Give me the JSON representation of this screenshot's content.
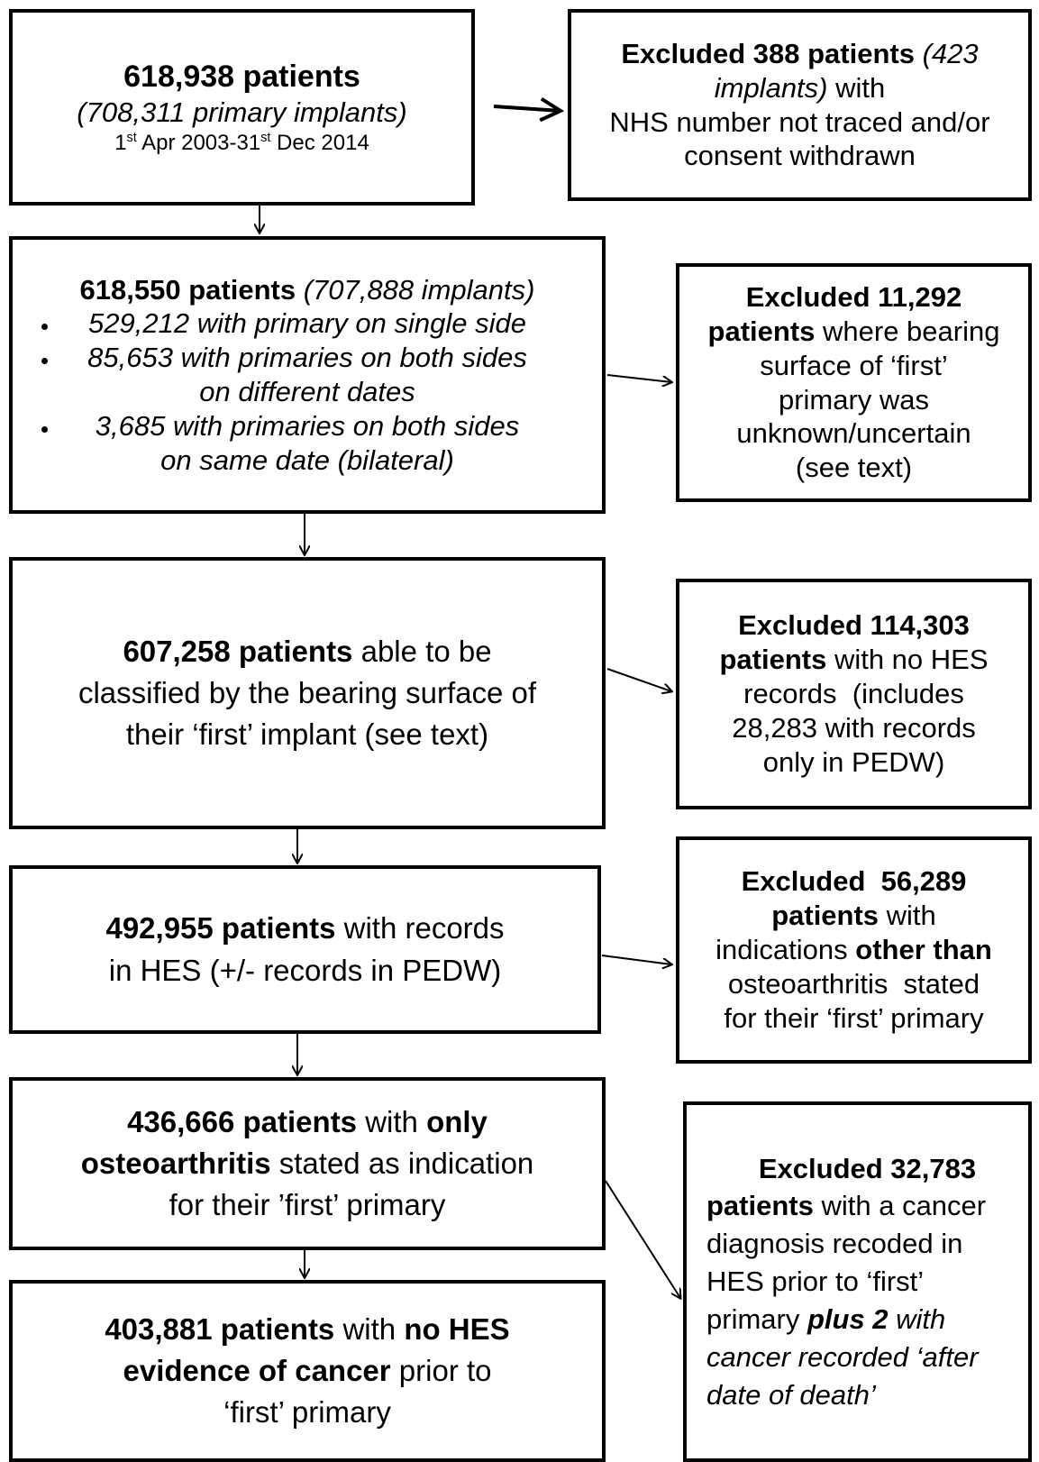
{
  "boxes": [
    {
      "lines": [
        [
          "618,938 patients"
        ],
        [
          "(708,311 primary implants)"
        ],
        [
          "1",
          "st",
          " Apr 2003-31",
          "st",
          " Dec 2014"
        ]
      ]
    },
    {
      "lines": [
        [
          "Excluded 388 patients",
          " (423"
        ],
        [
          "implants)",
          " with"
        ],
        [
          "NHS number not traced and/or"
        ],
        [
          "consent withdrawn"
        ]
      ]
    },
    {
      "lines": [
        [
          "618,550 patients",
          " (707,888 implants)"
        ],
        [
          "529,212 with primary on single side"
        ],
        [
          "85,653 with primaries on both sides"
        ],
        [
          "on different dates"
        ],
        [
          "3,685 with primaries on both sides"
        ],
        [
          "on same date (bilateral)"
        ]
      ]
    },
    {
      "lines": [
        [
          "Excluded 11,292"
        ],
        [
          "patients",
          " where bearing"
        ],
        [
          "surface of ‘first’"
        ],
        [
          "primary was"
        ],
        [
          "unknown/uncertain"
        ],
        [
          "(see text)"
        ]
      ]
    },
    {
      "lines": [
        [
          "607,258 patients",
          " able to be"
        ],
        [
          "classified by the bearing surface of"
        ],
        [
          "their ‘first’ implant (see text)"
        ]
      ]
    },
    {
      "lines": [
        [
          "Excluded 114,303"
        ],
        [
          "patients",
          " with no HES"
        ],
        [
          "records  (includes"
        ],
        [
          "28,283 with records"
        ],
        [
          "only in PEDW)"
        ]
      ]
    },
    {
      "lines": [
        [
          "492,955 patients",
          " with records"
        ],
        [
          "in HES (+/- records in PEDW)"
        ]
      ]
    },
    {
      "lines": [
        [
          "Excluded  56,289"
        ],
        [
          "patients",
          " with"
        ],
        [
          "indications ",
          "other than"
        ],
        [
          "osteoarthritis  stated"
        ],
        [
          "for their ‘first’ primary"
        ]
      ]
    },
    {
      "lines": [
        [
          "436,666 patients",
          " with ",
          "only"
        ],
        [
          "osteoarthritis",
          " stated as indication"
        ],
        [
          "for their ’first’ primary"
        ]
      ]
    },
    {
      "lines": [
        [
          "Excluded 32,783"
        ],
        [
          "patients",
          " with a cancer"
        ],
        [
          "diagnosis recoded in"
        ],
        [
          "HES prior to ‘first’"
        ],
        [
          "primary ",
          "plus 2",
          " with"
        ],
        [
          "cancer recorded ‘after"
        ],
        [
          "date of death’"
        ]
      ]
    },
    {
      "lines": [
        [
          "403,881 patients",
          " with ",
          "no HES"
        ],
        [
          "evidence of cancer",
          " prior to"
        ],
        [
          "‘first’ primary"
        ]
      ]
    }
  ]
}
